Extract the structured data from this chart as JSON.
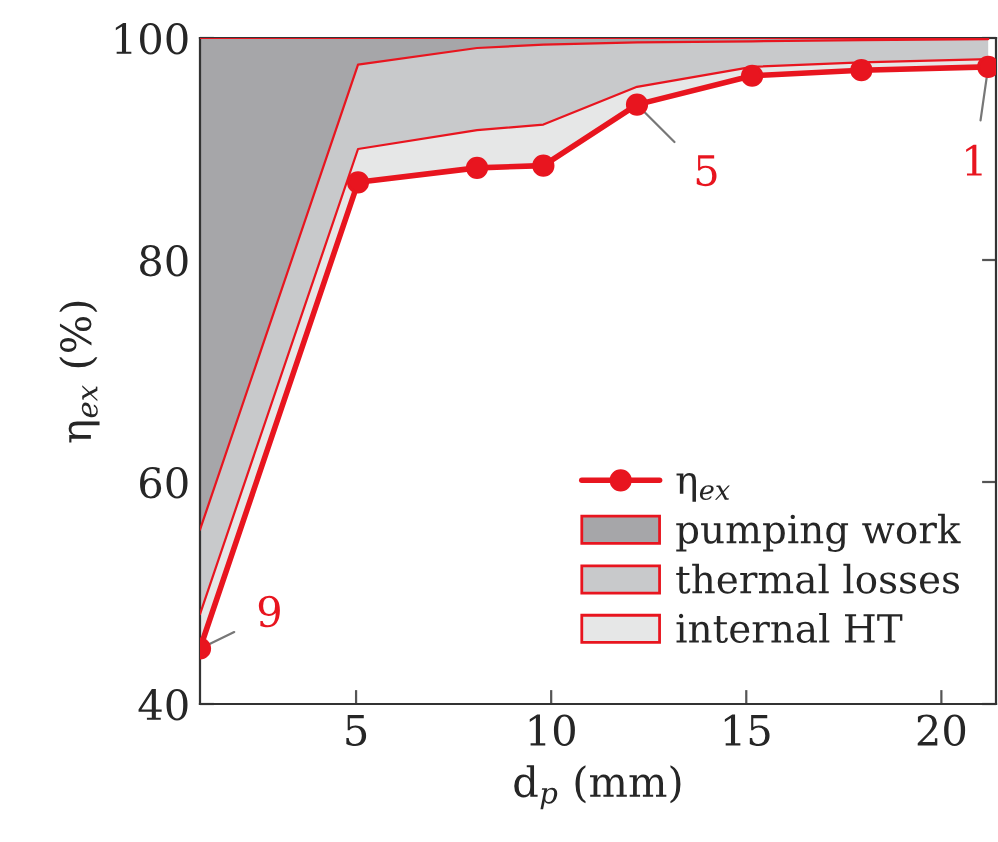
{
  "chart_data": {
    "type": "area",
    "xlabel": "d$_{p}$ (mm)",
    "ylabel": "η$_{ex}$ (%)",
    "x": [
      1,
      5.05,
      8.1,
      9.8,
      12.2,
      15.15,
      17.95,
      21.2
    ],
    "series": [
      {
        "name": "η$_{ex}$",
        "type": "line",
        "color": "#e8151f",
        "marker": "circle",
        "values": [
          45.0,
          87.0,
          88.3,
          88.5,
          94.0,
          96.6,
          97.1,
          97.4
        ]
      },
      {
        "name": "internal HT",
        "color": "#e6e7e7",
        "values": [
          48.1,
          90.0,
          91.7,
          92.2,
          95.6,
          97.4,
          97.8,
          98.1
        ]
      },
      {
        "name": "thermal losses",
        "color": "#c8c9cb",
        "values": [
          55.7,
          97.6,
          99.1,
          99.4,
          99.6,
          99.7,
          99.8,
          99.9
        ]
      },
      {
        "name": "pumping work",
        "color": "#a6a6a9",
        "values": [
          100,
          100,
          100,
          100,
          100,
          100,
          100,
          100
        ]
      }
    ],
    "legend": "right",
    "annotations": [
      {
        "text": "9",
        "x": 1,
        "y": 45.0
      },
      {
        "text": "5",
        "x": 12.2,
        "y": 94.0
      },
      {
        "text": "1",
        "x": 21.2,
        "y": 97.4
      }
    ],
    "xlim": [
      1,
      21.4
    ],
    "ylim": [
      40,
      100
    ],
    "xticks": [
      5,
      10,
      15,
      20
    ],
    "yticks": [
      40,
      60,
      80,
      100
    ],
    "grid": false
  }
}
